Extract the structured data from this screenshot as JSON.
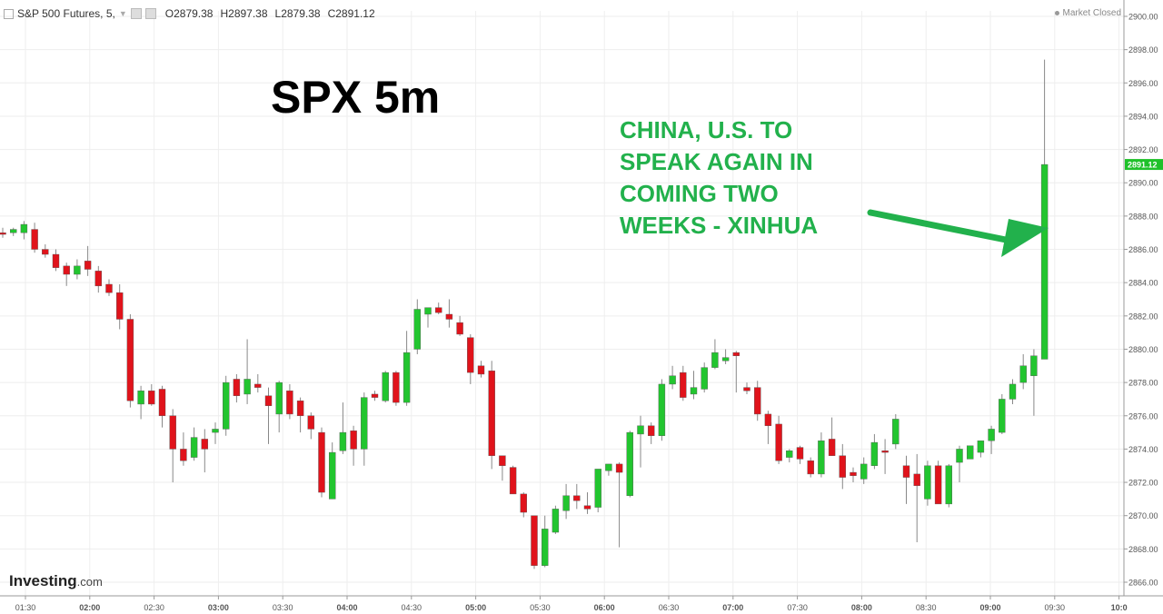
{
  "header": {
    "symbol": "S&P 500 Futures, 5,",
    "open": "O2879.38",
    "high": "H2897.38",
    "low": "L2879.38",
    "close": "C2891.12"
  },
  "market_status": "Market Closed",
  "overlay": {
    "title": "SPX 5m",
    "headline": [
      "CHINA, U.S. TO",
      "SPEAK AGAIN IN",
      "COMING TWO",
      "WEEKS - XINHUA"
    ]
  },
  "logo": {
    "brand": "Investing",
    "suffix": ".com"
  },
  "colors": {
    "up": "#22c52f",
    "down": "#e0131b",
    "annotation": "#22b14c",
    "price_tag": "#1fc12a"
  },
  "chart_data": {
    "type": "candlestick",
    "title": "SPX 5m",
    "ylim": [
      2865,
      2900.6
    ],
    "y_ticks": [
      2866,
      2868,
      2870,
      2872,
      2874,
      2876,
      2878,
      2880,
      2882,
      2884,
      2886,
      2888,
      2890,
      2892,
      2894,
      2896,
      2898,
      2900
    ],
    "y_tick_labels": [
      "2866.00",
      "2868.00",
      "2870.00",
      "2872.00",
      "2874.00",
      "2876.00",
      "2878.00",
      "2880.00",
      "2882.00",
      "2884.00",
      "2886.00",
      "2888.00",
      "2890.00",
      "2892.00",
      "2894.00",
      "2896.00",
      "2898.00",
      "2900.00"
    ],
    "x_tick_labels": [
      "01:30",
      "02:00",
      "02:30",
      "03:00",
      "03:30",
      "04:00",
      "04:30",
      "05:00",
      "05:30",
      "06:00",
      "06:30",
      "07:00",
      "07:30",
      "08:00",
      "08:30",
      "09:00",
      "09:30",
      "10:0"
    ],
    "last_price_label": "2891.12",
    "grid": true,
    "candles": [
      [
        2887.0,
        2887.3,
        2886.7,
        2886.9
      ],
      [
        2887.0,
        2887.3,
        2886.8,
        2887.2
      ],
      [
        2887.0,
        2887.7,
        2886.6,
        2887.5
      ],
      [
        2887.2,
        2887.6,
        2885.8,
        2886.0
      ],
      [
        2886.0,
        2886.3,
        2885.5,
        2885.7
      ],
      [
        2885.7,
        2886.0,
        2884.7,
        2884.9
      ],
      [
        2885.0,
        2885.2,
        2883.8,
        2884.5
      ],
      [
        2884.5,
        2885.4,
        2884.2,
        2885.0
      ],
      [
        2885.3,
        2886.2,
        2884.4,
        2884.8
      ],
      [
        2884.7,
        2885.0,
        2883.4,
        2883.8
      ],
      [
        2883.9,
        2884.2,
        2883.2,
        2883.4
      ],
      [
        2883.4,
        2883.9,
        2881.2,
        2881.8
      ],
      [
        2881.8,
        2882.1,
        2876.5,
        2876.9
      ],
      [
        2876.7,
        2877.8,
        2875.8,
        2877.5
      ],
      [
        2877.5,
        2877.9,
        2876.6,
        2876.7
      ],
      [
        2877.6,
        2877.8,
        2875.3,
        2876.0
      ],
      [
        2876.0,
        2876.4,
        2872.0,
        2874.0
      ],
      [
        2874.0,
        2875.0,
        2873.0,
        2873.3
      ],
      [
        2873.5,
        2875.3,
        2873.3,
        2874.7
      ],
      [
        2874.6,
        2875.2,
        2872.6,
        2874.0
      ],
      [
        2875.0,
        2875.6,
        2874.3,
        2875.2
      ],
      [
        2875.2,
        2878.4,
        2874.8,
        2878.0
      ],
      [
        2878.2,
        2878.5,
        2876.8,
        2877.2
      ],
      [
        2877.3,
        2880.6,
        2876.7,
        2878.2
      ],
      [
        2877.9,
        2878.5,
        2877.4,
        2877.7
      ],
      [
        2877.2,
        2877.7,
        2874.3,
        2876.6
      ],
      [
        2876.1,
        2878.1,
        2875.0,
        2878.0
      ],
      [
        2877.5,
        2877.9,
        2875.8,
        2876.1
      ],
      [
        2876.9,
        2877.1,
        2875.0,
        2876.0
      ],
      [
        2876.0,
        2876.2,
        2874.6,
        2875.2
      ],
      [
        2875.0,
        2875.3,
        2871.1,
        2871.4
      ],
      [
        2871.0,
        2874.4,
        2871.0,
        2873.8
      ],
      [
        2873.9,
        2876.8,
        2873.7,
        2875.0
      ],
      [
        2875.1,
        2875.4,
        2873.0,
        2874.0
      ],
      [
        2874.0,
        2877.4,
        2873.0,
        2877.1
      ],
      [
        2877.3,
        2877.5,
        2876.9,
        2877.1
      ],
      [
        2876.9,
        2878.7,
        2876.8,
        2878.6
      ],
      [
        2878.6,
        2878.7,
        2876.6,
        2876.8
      ],
      [
        2876.8,
        2881.1,
        2876.6,
        2879.8
      ],
      [
        2880.0,
        2883.0,
        2879.7,
        2882.4
      ],
      [
        2882.1,
        2882.4,
        2881.3,
        2882.5
      ],
      [
        2882.5,
        2882.8,
        2882.1,
        2882.2
      ],
      [
        2882.1,
        2883.0,
        2881.3,
        2881.8
      ],
      [
        2881.6,
        2882.0,
        2880.8,
        2880.9
      ],
      [
        2880.7,
        2880.9,
        2877.9,
        2878.6
      ],
      [
        2879.0,
        2879.3,
        2878.3,
        2878.5
      ],
      [
        2878.7,
        2879.3,
        2872.8,
        2873.6
      ],
      [
        2873.6,
        2873.6,
        2872.1,
        2873.0
      ],
      [
        2872.9,
        2873.0,
        2871.3,
        2871.3
      ],
      [
        2871.3,
        2871.4,
        2869.9,
        2870.2
      ],
      [
        2870.0,
        2870.0,
        2866.8,
        2867.0
      ],
      [
        2867.0,
        2870.0,
        2866.9,
        2869.2
      ],
      [
        2869.0,
        2870.6,
        2868.9,
        2870.4
      ],
      [
        2870.3,
        2871.9,
        2869.8,
        2871.2
      ],
      [
        2871.2,
        2871.9,
        2870.4,
        2870.9
      ],
      [
        2870.6,
        2871.4,
        2870.1,
        2870.4
      ],
      [
        2870.5,
        2872.6,
        2870.2,
        2872.8
      ],
      [
        2872.7,
        2873.1,
        2872.4,
        2873.1
      ],
      [
        2873.1,
        2873.2,
        2868.1,
        2872.6
      ],
      [
        2871.2,
        2875.1,
        2871.1,
        2875.0
      ],
      [
        2874.9,
        2876.0,
        2872.9,
        2875.4
      ],
      [
        2875.4,
        2875.6,
        2874.3,
        2874.8
      ],
      [
        2874.8,
        2878.2,
        2874.5,
        2877.9
      ],
      [
        2877.9,
        2879.0,
        2877.6,
        2878.4
      ],
      [
        2878.6,
        2879.0,
        2876.9,
        2877.1
      ],
      [
        2877.3,
        2878.7,
        2877.0,
        2877.7
      ],
      [
        2877.6,
        2879.2,
        2877.4,
        2878.9
      ],
      [
        2878.9,
        2880.6,
        2878.8,
        2879.8
      ],
      [
        2879.3,
        2880.0,
        2879.1,
        2879.5
      ],
      [
        2879.8,
        2879.9,
        2877.4,
        2879.6
      ],
      [
        2877.7,
        2878.0,
        2877.3,
        2877.5
      ],
      [
        2877.7,
        2878.1,
        2875.7,
        2876.1
      ],
      [
        2876.1,
        2876.3,
        2874.3,
        2875.4
      ],
      [
        2875.5,
        2876.0,
        2873.1,
        2873.3
      ],
      [
        2873.5,
        2874.0,
        2873.2,
        2873.9
      ],
      [
        2874.1,
        2874.2,
        2873.1,
        2873.4
      ],
      [
        2873.3,
        2873.5,
        2872.3,
        2872.5
      ],
      [
        2872.5,
        2875.0,
        2872.3,
        2874.5
      ],
      [
        2874.6,
        2875.9,
        2873.6,
        2873.6
      ],
      [
        2873.6,
        2874.3,
        2871.6,
        2872.3
      ],
      [
        2872.6,
        2872.9,
        2872.0,
        2872.4
      ],
      [
        2872.2,
        2873.5,
        2871.9,
        2873.1
      ],
      [
        2873.0,
        2874.9,
        2872.8,
        2874.4
      ],
      [
        2873.9,
        2874.6,
        2872.5,
        2873.8
      ],
      [
        2874.3,
        2876.1,
        2874.0,
        2875.8
      ],
      [
        2873.0,
        2873.6,
        2870.7,
        2872.3
      ],
      [
        2872.5,
        2873.7,
        2868.4,
        2871.8
      ],
      [
        2871.0,
        2873.3,
        2870.6,
        2873.0
      ],
      [
        2873.0,
        2873.3,
        2870.8,
        2870.7
      ],
      [
        2870.7,
        2873.1,
        2870.5,
        2873.0
      ],
      [
        2873.2,
        2874.2,
        2872.0,
        2874.0
      ],
      [
        2873.4,
        2874.1,
        2873.4,
        2874.2
      ],
      [
        2873.8,
        2874.3,
        2873.5,
        2874.5
      ],
      [
        2874.5,
        2875.4,
        2873.7,
        2875.2
      ],
      [
        2875.0,
        2877.3,
        2874.9,
        2877.0
      ],
      [
        2877.0,
        2878.2,
        2876.7,
        2877.9
      ],
      [
        2878.0,
        2879.7,
        2877.6,
        2879.0
      ],
      [
        2878.4,
        2880.0,
        2876.0,
        2879.6
      ],
      [
        2879.4,
        2897.4,
        2879.4,
        2891.1
      ]
    ]
  }
}
